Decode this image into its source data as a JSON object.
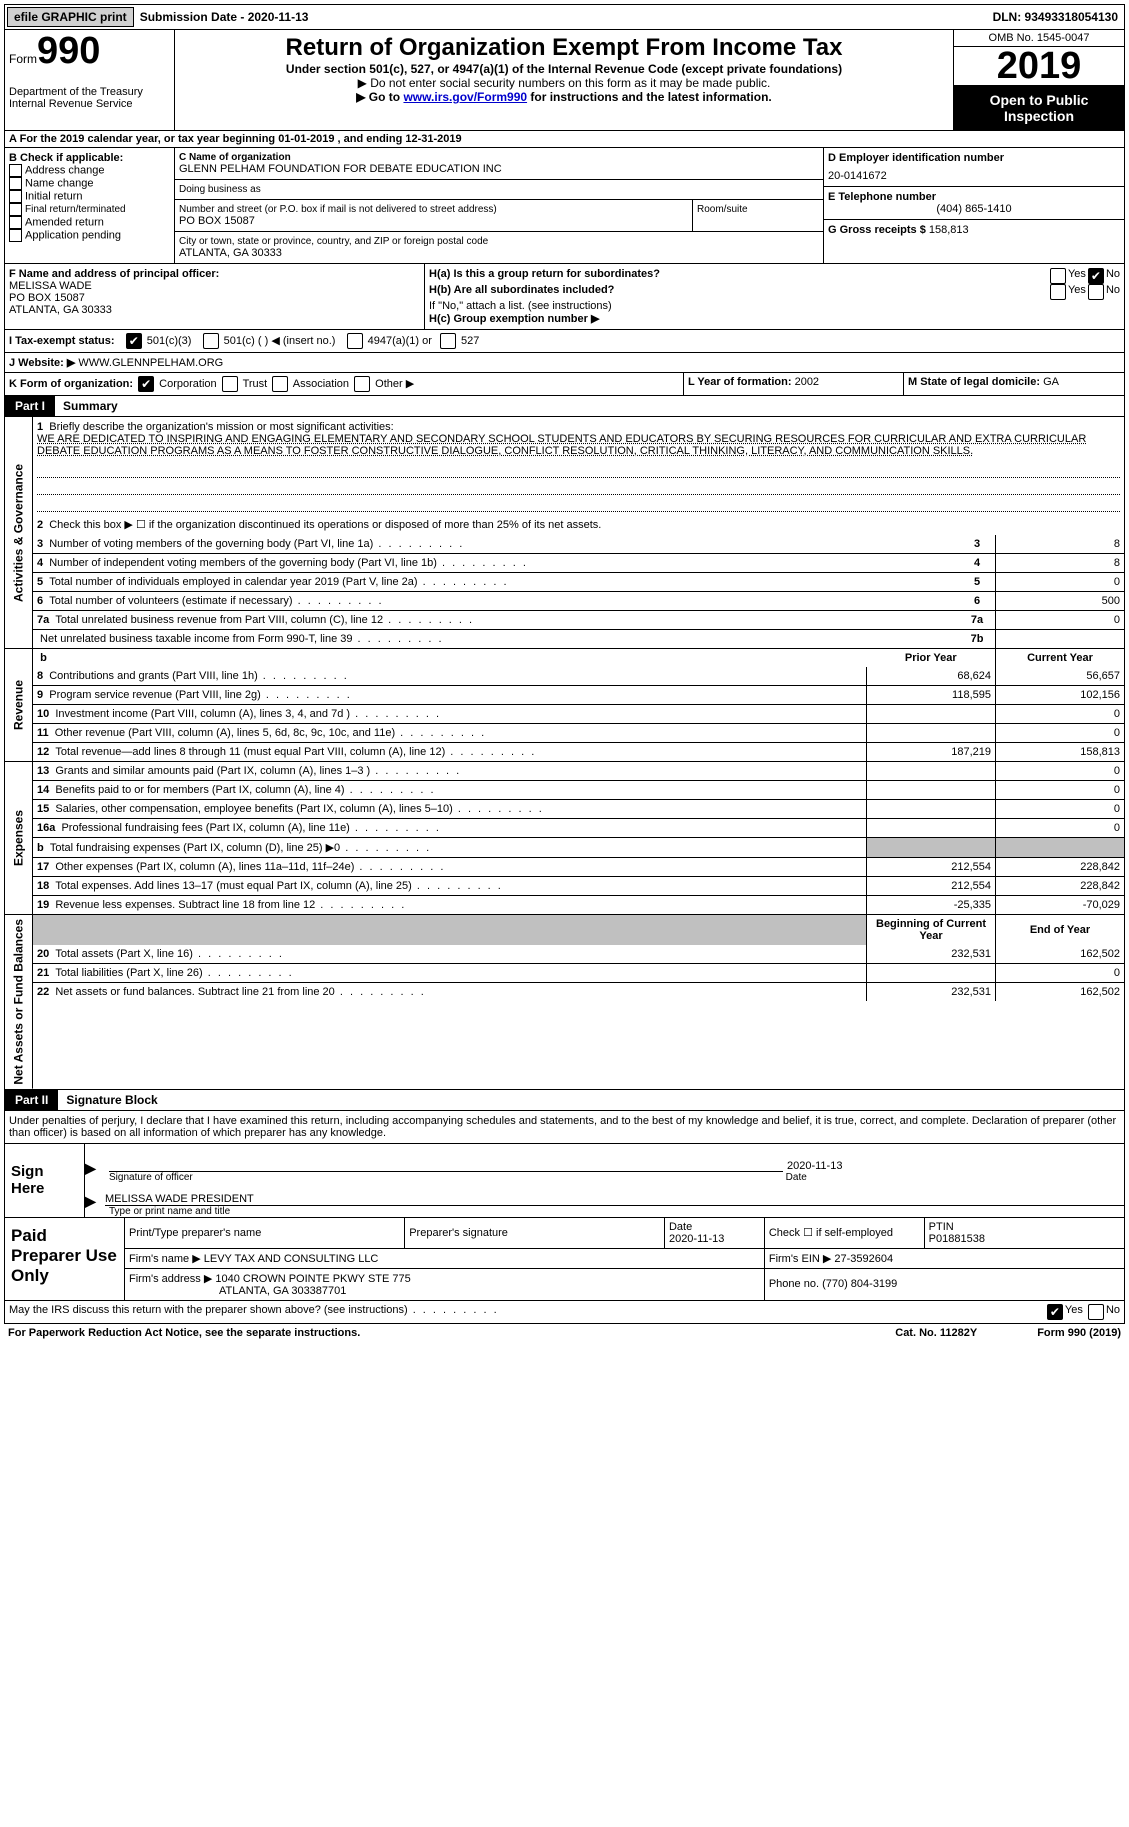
{
  "topbar": {
    "efile": "efile GRAPHIC print",
    "submission": "Submission Date - 2020-11-13",
    "dln": "DLN: 93493318054130"
  },
  "header": {
    "form_label": "Form",
    "form_num": "990",
    "dept": "Department of the Treasury\nInternal Revenue Service",
    "title": "Return of Organization Exempt From Income Tax",
    "subtitle": "Under section 501(c), 527, or 4947(a)(1) of the Internal Revenue Code (except private foundations)",
    "note1": "▶ Do not enter social security numbers on this form as it may be made public.",
    "note2_pre": "▶ Go to ",
    "note2_link": "www.irs.gov/Form990",
    "note2_post": " for instructions and the latest information.",
    "omb": "OMB No. 1545-0047",
    "year": "2019",
    "open": "Open to Public Inspection"
  },
  "row_a": "For the 2019 calendar year, or tax year beginning 01-01-2019   , and ending 12-31-2019",
  "box_b": {
    "title": "B Check if applicable:",
    "items": [
      "Address change",
      "Name change",
      "Initial return",
      "Final return/terminated",
      "Amended return",
      "Application pending"
    ]
  },
  "box_c": {
    "label_name": "C Name of organization",
    "org_name": "GLENN PELHAM FOUNDATION FOR DEBATE EDUCATION INC",
    "dba_label": "Doing business as",
    "addr_label": "Number and street (or P.O. box if mail is not delivered to street address)",
    "room_label": "Room/suite",
    "addr": "PO BOX 15087",
    "city_label": "City or town, state or province, country, and ZIP or foreign postal code",
    "city": "ATLANTA, GA  30333"
  },
  "box_d": {
    "label": "D Employer identification number",
    "value": "20-0141672"
  },
  "box_e": {
    "label": "E Telephone number",
    "value": "(404) 865-1410"
  },
  "box_g": {
    "label": "G Gross receipts $",
    "value": "158,813"
  },
  "box_f": {
    "label": "F Name and address of principal officer:",
    "name": "MELISSA WADE",
    "addr1": "PO BOX 15087",
    "addr2": "ATLANTA, GA  30333"
  },
  "box_h": {
    "ha": "H(a)  Is this a group return for subordinates?",
    "hb": "H(b)  Are all subordinates included?",
    "hb_note": "If \"No,\" attach a list. (see instructions)",
    "hc": "H(c)  Group exemption number ▶"
  },
  "row_i": {
    "label": "I   Tax-exempt status:",
    "opts": [
      "501(c)(3)",
      "501(c) (  ) ◀ (insert no.)",
      "4947(a)(1) or",
      "527"
    ]
  },
  "row_j": {
    "label": "J   Website: ▶",
    "value": "WWW.GLENNPELHAM.ORG"
  },
  "row_k": {
    "label": "K Form of organization:",
    "opts": [
      "Corporation",
      "Trust",
      "Association",
      "Other ▶"
    ]
  },
  "row_l": {
    "label": "L Year of formation:",
    "value": "2002"
  },
  "row_m": {
    "label": "M State of legal domicile:",
    "value": "GA"
  },
  "part1": {
    "num": "Part I",
    "title": "Summary"
  },
  "summary": {
    "q1": "Briefly describe the organization's mission or most significant activities:",
    "mission": "WE ARE DEDICATED TO INSPIRING AND ENGAGING ELEMENTARY AND SECONDARY SCHOOL STUDENTS AND EDUCATORS BY SECURING RESOURCES FOR CURRICULAR AND EXTRA CURRICULAR DEBATE EDUCATION PROGRAMS AS A MEANS TO FOSTER CONSTRUCTIVE DIALOGUE, CONFLICT RESOLUTION, CRITICAL THINKING, LITERACY, AND COMMUNICATION SKILLS.",
    "q2": "Check this box ▶ ☐  if the organization discontinued its operations or disposed of more than 25% of its net assets.",
    "lines": [
      {
        "n": "3",
        "t": "Number of voting members of the governing body (Part VI, line 1a)",
        "box": "3",
        "v": "8"
      },
      {
        "n": "4",
        "t": "Number of independent voting members of the governing body (Part VI, line 1b)",
        "box": "4",
        "v": "8"
      },
      {
        "n": "5",
        "t": "Total number of individuals employed in calendar year 2019 (Part V, line 2a)",
        "box": "5",
        "v": "0"
      },
      {
        "n": "6",
        "t": "Total number of volunteers (estimate if necessary)",
        "box": "6",
        "v": "500"
      },
      {
        "n": "7a",
        "t": "Total unrelated business revenue from Part VIII, column (C), line 12",
        "box": "7a",
        "v": "0"
      },
      {
        "n": "",
        "t": "Net unrelated business taxable income from Form 990-T, line 39",
        "box": "7b",
        "v": ""
      }
    ]
  },
  "revenue": {
    "hdr_prior": "Prior Year",
    "hdr_current": "Current Year",
    "rows": [
      {
        "n": "8",
        "t": "Contributions and grants (Part VIII, line 1h)",
        "p": "68,624",
        "c": "56,657"
      },
      {
        "n": "9",
        "t": "Program service revenue (Part VIII, line 2g)",
        "p": "118,595",
        "c": "102,156"
      },
      {
        "n": "10",
        "t": "Investment income (Part VIII, column (A), lines 3, 4, and 7d )",
        "p": "",
        "c": "0"
      },
      {
        "n": "11",
        "t": "Other revenue (Part VIII, column (A), lines 5, 6d, 8c, 9c, 10c, and 11e)",
        "p": "",
        "c": "0"
      },
      {
        "n": "12",
        "t": "Total revenue—add lines 8 through 11 (must equal Part VIII, column (A), line 12)",
        "p": "187,219",
        "c": "158,813"
      }
    ]
  },
  "expenses": {
    "rows": [
      {
        "n": "13",
        "t": "Grants and similar amounts paid (Part IX, column (A), lines 1–3 )",
        "p": "",
        "c": "0"
      },
      {
        "n": "14",
        "t": "Benefits paid to or for members (Part IX, column (A), line 4)",
        "p": "",
        "c": "0"
      },
      {
        "n": "15",
        "t": "Salaries, other compensation, employee benefits (Part IX, column (A), lines 5–10)",
        "p": "",
        "c": "0"
      },
      {
        "n": "16a",
        "t": "Professional fundraising fees (Part IX, column (A), line 11e)",
        "p": "",
        "c": "0"
      },
      {
        "n": "b",
        "t": "Total fundraising expenses (Part IX, column (D), line 25) ▶0",
        "p": "GRAY",
        "c": "GRAY"
      },
      {
        "n": "17",
        "t": "Other expenses (Part IX, column (A), lines 11a–11d, 11f–24e)",
        "p": "212,554",
        "c": "228,842"
      },
      {
        "n": "18",
        "t": "Total expenses. Add lines 13–17 (must equal Part IX, column (A), line 25)",
        "p": "212,554",
        "c": "228,842"
      },
      {
        "n": "19",
        "t": "Revenue less expenses. Subtract line 18 from line 12",
        "p": "-25,335",
        "c": "-70,029"
      }
    ]
  },
  "netassets": {
    "hdr_begin": "Beginning of Current Year",
    "hdr_end": "End of Year",
    "rows": [
      {
        "n": "20",
        "t": "Total assets (Part X, line 16)",
        "p": "232,531",
        "c": "162,502"
      },
      {
        "n": "21",
        "t": "Total liabilities (Part X, line 26)",
        "p": "",
        "c": "0"
      },
      {
        "n": "22",
        "t": "Net assets or fund balances. Subtract line 21 from line 20",
        "p": "232,531",
        "c": "162,502"
      }
    ]
  },
  "part2": {
    "num": "Part II",
    "title": "Signature Block"
  },
  "sig": {
    "decl": "Under penalties of perjury, I declare that I have examined this return, including accompanying schedules and statements, and to the best of my knowledge and belief, it is true, correct, and complete. Declaration of preparer (other than officer) is based on all information of which preparer has any knowledge.",
    "sign_here": "Sign Here",
    "sig_officer": "Signature of officer",
    "date": "Date",
    "date_val": "2020-11-13",
    "name_title": "MELISSA WADE PRESIDENT",
    "name_label": "Type or print name and title"
  },
  "paid": {
    "label": "Paid Preparer Use Only",
    "h1": "Print/Type preparer's name",
    "h2": "Preparer's signature",
    "h3": "Date",
    "h3v": "2020-11-13",
    "h4": "Check ☐ if self-employed",
    "h5": "PTIN",
    "h5v": "P01881538",
    "firm_name_l": "Firm's name    ▶",
    "firm_name": "LEVY TAX AND CONSULTING LLC",
    "firm_ein_l": "Firm's EIN ▶",
    "firm_ein": "27-3592604",
    "firm_addr_l": "Firm's address ▶",
    "firm_addr": "1040 CROWN POINTE PKWY STE 775",
    "firm_city": "ATLANTA, GA  303387701",
    "phone_l": "Phone no.",
    "phone": "(770) 804-3199"
  },
  "footer": {
    "discuss": "May the IRS discuss this return with the preparer shown above? (see instructions)",
    "paperwork": "For Paperwork Reduction Act Notice, see the separate instructions.",
    "cat": "Cat. No. 11282Y",
    "form": "Form 990 (2019)"
  },
  "labels": {
    "activities": "Activities & Governance",
    "revenue": "Revenue",
    "expenses": "Expenses",
    "netassets": "Net Assets or Fund Balances",
    "yes": "Yes",
    "no": "No",
    "b": "b"
  }
}
